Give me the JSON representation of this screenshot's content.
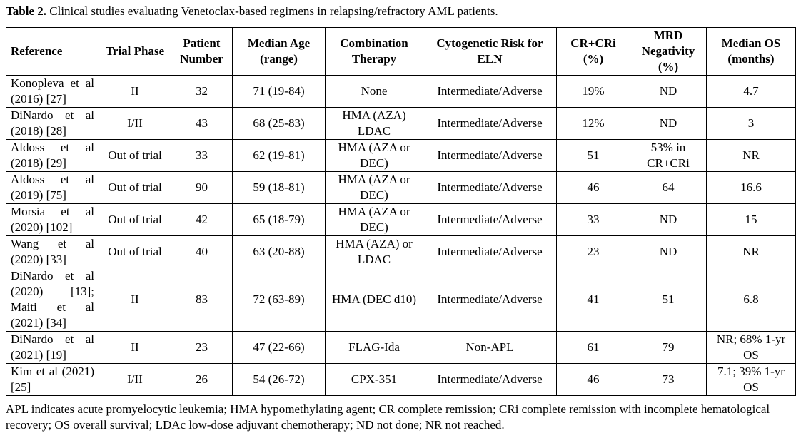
{
  "caption": {
    "label": "Table 2.",
    "text": " Clinical studies evaluating Venetoclax-based regimens in relapsing/refractory AML patients."
  },
  "table": {
    "headers": [
      "Reference",
      "Trial Phase",
      "Patient Number",
      "Median Age (range)",
      "Combination Therapy",
      "Cytogenetic Risk for ELN",
      "CR+CRi (%)",
      "MRD Negativity (%)",
      "Median OS (months)"
    ],
    "rows": [
      [
        "Konopleva et al (2016) [27]",
        "II",
        "32",
        "71 (19-84)",
        "None",
        "Intermediate/Adverse",
        "19%",
        "ND",
        "4.7"
      ],
      [
        "DiNardo et al (2018) [28]",
        "I/II",
        "43",
        "68 (25-83)",
        "HMA (AZA) LDAC",
        "Intermediate/Adverse",
        "12%",
        "ND",
        "3"
      ],
      [
        "Aldoss et al (2018) [29]",
        "Out of trial",
        "33",
        "62 (19-81)",
        "HMA (AZA or DEC)",
        "Intermediate/Adverse",
        "51",
        "53% in CR+CRi",
        "NR"
      ],
      [
        "Aldoss et al (2019) [75]",
        "Out of trial",
        "90",
        "59 (18-81)",
        "HMA (AZA or DEC)",
        "Intermediate/Adverse",
        "46",
        "64",
        "16.6"
      ],
      [
        "Morsia et al (2020) [102]",
        "Out of trial",
        "42",
        "65 (18-79)",
        "HMA (AZA or DEC)",
        "Intermediate/Adverse",
        "33",
        "ND",
        "15"
      ],
      [
        "Wang et al (2020) [33]",
        "Out of trial",
        "40",
        "63 (20-88)",
        "HMA (AZA) or LDAC",
        "Intermediate/Adverse",
        "23",
        "ND",
        "NR"
      ],
      [
        "DiNardo et al (2020) [13]; Maiti et al (2021) [34]",
        "II",
        "83",
        "72 (63-89)",
        "HMA (DEC d10)",
        "Intermediate/Adverse",
        "41",
        "51",
        "6.8"
      ],
      [
        "DiNardo et al (2021) [19]",
        "II",
        "23",
        "47 (22-66)",
        "FLAG-Ida",
        "Non-APL",
        "61",
        "79",
        "NR; 68% 1-yr OS"
      ],
      [
        "Kim et al (2021) [25]",
        "I/II",
        "26",
        "54 (26-72)",
        "CPX-351",
        "Intermediate/Adverse",
        "46",
        "73",
        "7.1; 39% 1-yr OS"
      ]
    ]
  },
  "footnote": "APL indicates acute promyelocytic leukemia; HMA hypomethylating agent; CR complete remission; CRi complete remission with incomplete hematological recovery; OS overall survival; LDAc low-dose adjuvant chemotherapy; ND not done; NR not reached."
}
